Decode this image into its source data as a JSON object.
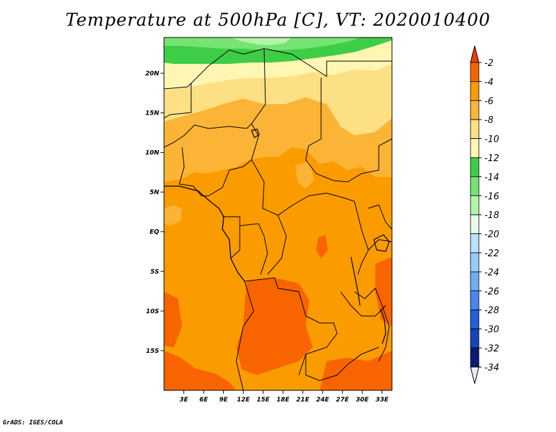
{
  "title": "Temperature at 500hPa [C], VT: 2020010400",
  "credit": "GrADS: IGES/COLA",
  "map": {
    "lon_range": [
      0,
      34.5
    ],
    "lat_range": [
      -20,
      24.5
    ],
    "x_ticks": [
      "3E",
      "6E",
      "9E",
      "12E",
      "15E",
      "18E",
      "21E",
      "24E",
      "27E",
      "30E",
      "33E"
    ],
    "x_tick_values": [
      3,
      6,
      9,
      12,
      15,
      18,
      21,
      24,
      27,
      30,
      33
    ],
    "y_ticks": [
      "20N",
      "15N",
      "10N",
      "5N",
      "EQ",
      "5S",
      "10S",
      "15S"
    ],
    "y_tick_values": [
      20,
      15,
      10,
      5,
      0,
      -5,
      -10,
      -15
    ]
  },
  "legend": {
    "labels": [
      "-2",
      "-4",
      "-6",
      "-8",
      "-10",
      "-12",
      "-14",
      "-16",
      "-18",
      "-20",
      "-22",
      "-24",
      "-26",
      "-28",
      "-30",
      "-32",
      "-34"
    ],
    "colors": [
      "#f03c00",
      "#f86400",
      "#fa9b00",
      "#fcb437",
      "#fde083",
      "#fff6b4",
      "#3ecd46",
      "#76e473",
      "#b2f4a8",
      "#e8fce9",
      "#b9e2fb",
      "#96cbfb",
      "#6eaef4",
      "#4987ef",
      "#2060d8",
      "#1444b8",
      "#0a1c78"
    ],
    "cap_low_color": "#e6ebfb",
    "cap_high_color": "#f03c00"
  }
}
